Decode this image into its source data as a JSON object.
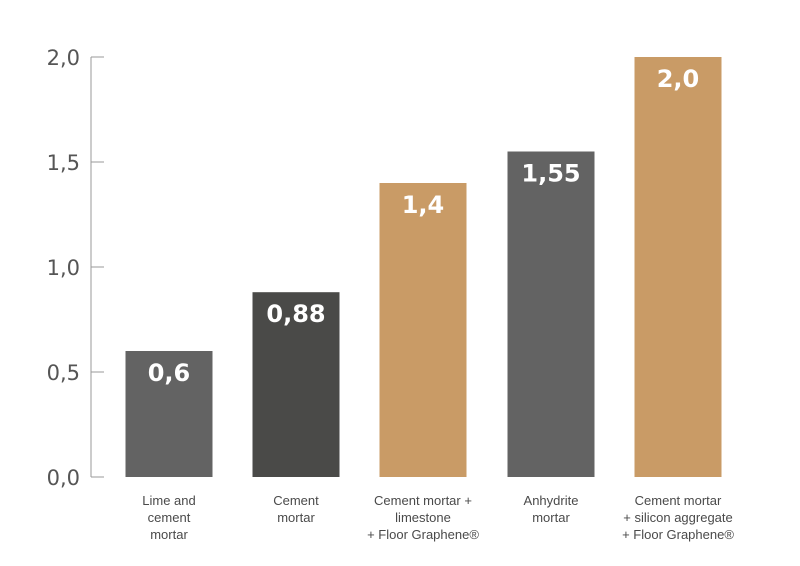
{
  "chart_data": {
    "type": "bar",
    "categories": [
      [
        "Lime and",
        "cement",
        "mortar"
      ],
      [
        "Cement",
        "mortar"
      ],
      [
        "Cement mortar +",
        "limestone",
        "+ Floor Graphene®"
      ],
      [
        "Anhydrite",
        "mortar"
      ],
      [
        "Cement mortar",
        "+ silicon aggregate",
        "+ Floor Graphene®"
      ]
    ],
    "values": [
      0.6,
      0.88,
      1.4,
      1.55,
      2.0
    ],
    "value_labels": [
      "0,6",
      "0,88",
      "1,4",
      "1,55",
      "2,0"
    ],
    "bar_colors": [
      "#636363",
      "#4a4a48",
      "#c99b66",
      "#636363",
      "#c99b66"
    ],
    "ylim": [
      0,
      2.0
    ],
    "y_ticks": [
      0,
      0.5,
      1.0,
      1.5,
      2.0
    ],
    "y_tick_labels": [
      "0,0",
      "0,5",
      "1,0",
      "1,5",
      "2,0"
    ],
    "title": "",
    "xlabel": "",
    "ylabel": "",
    "grid": false,
    "axis_color": "#9a9a9a"
  }
}
